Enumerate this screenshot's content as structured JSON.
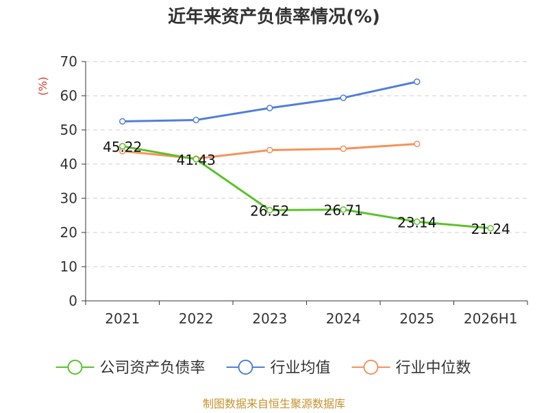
{
  "chart_data": {
    "type": "line",
    "title": "近年来资产负债率情况(%)",
    "ylabel": "(%)",
    "xlabel": "",
    "categories": [
      "2021",
      "2022",
      "2023",
      "2024",
      "2025",
      "2026H1"
    ],
    "ylim": [
      0,
      70
    ],
    "yticks": [
      0,
      10,
      20,
      30,
      40,
      50,
      60,
      70
    ],
    "grid": true,
    "legend_position": "bottom",
    "series": [
      {
        "name": "公司资产负债率",
        "color": "#5bc22a",
        "values": [
          45.22,
          41.43,
          26.52,
          26.71,
          23.14,
          21.24
        ],
        "labels": [
          "45.22",
          "41.43",
          "26.52",
          "26.71",
          "23.14",
          "21.24"
        ]
      },
      {
        "name": "行业均值",
        "color": "#4f7fd9",
        "values": [
          52.5,
          52.9,
          56.4,
          59.4,
          64.1,
          null
        ]
      },
      {
        "name": "行业中位数",
        "color": "#f4925a",
        "values": [
          43.8,
          41.6,
          44.1,
          44.5,
          45.9,
          null
        ]
      }
    ]
  },
  "source": "制图数据来自恒生聚源数据库",
  "colors": {
    "title": "#333333",
    "ylabel": "#d9372b",
    "axis": "#333333",
    "grid": "#cccccc",
    "source": "#c8912d"
  }
}
